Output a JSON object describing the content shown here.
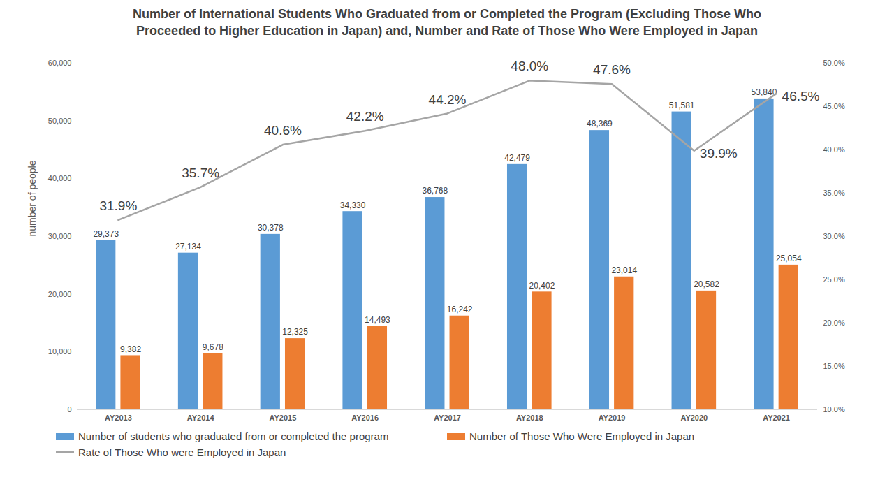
{
  "chart_data": {
    "type": "bar",
    "title": "Number of International Students Who Graduated from or Completed the Program (Excluding Those Who Proceeded to Higher Education in Japan) and, Number and Rate of Those Who Were Employed in Japan",
    "ylabel": "number of people",
    "categories": [
      "AY2013",
      "AY2014",
      "AY2015",
      "AY2016",
      "AY2017",
      "AY2018",
      "AY2019",
      "AY2020",
      "AY2021"
    ],
    "series": [
      {
        "name": "Number of students who graduated from or completed the program",
        "type": "bar",
        "color": "#5b9bd5",
        "values": [
          29373,
          27134,
          30378,
          34330,
          36768,
          42479,
          48369,
          51581,
          53840
        ],
        "value_labels": [
          "29,373",
          "27,134",
          "30,378",
          "34,330",
          "36,768",
          "42,479",
          "48,369",
          "51,581",
          "53,840"
        ]
      },
      {
        "name": "Number of Those Who Were Employed in Japan",
        "type": "bar",
        "color": "#ed7d31",
        "values": [
          9382,
          9678,
          12325,
          14493,
          16242,
          20402,
          23014,
          20582,
          25054
        ],
        "value_labels": [
          "9,382",
          "9,678",
          "12,325",
          "14,493",
          "16,242",
          "20,402",
          "23,014",
          "20,582",
          "25,054"
        ]
      },
      {
        "name": "Rate of Those Who were Employed in Japan",
        "type": "line",
        "axis": "y2",
        "color": "#a5a5a5",
        "values": [
          31.9,
          35.7,
          40.6,
          42.2,
          44.2,
          48.0,
          47.6,
          39.9,
          46.5
        ],
        "value_labels": [
          "31.9%",
          "35.7%",
          "40.6%",
          "42.2%",
          "44.2%",
          "48.0%",
          "47.6%",
          "39.9%",
          "46.5%"
        ]
      }
    ],
    "ylim": [
      0,
      60000
    ],
    "yticks": [
      0,
      {
        "value": 10000,
        "label": "10,000"
      },
      {
        "value": 20000,
        "label": "20,000"
      },
      {
        "value": 30000,
        "label": "30,000"
      },
      {
        "value": 40000,
        "label": "40,000"
      },
      {
        "value": 50000,
        "label": "50,000"
      },
      {
        "value": 60000,
        "label": "60,000"
      }
    ],
    "y2lim": [
      10,
      50
    ],
    "y2ticks": [
      {
        "value": 10,
        "label": "10.0%"
      },
      {
        "value": 15,
        "label": "15.0%"
      },
      {
        "value": 20,
        "label": "20.0%"
      },
      {
        "value": 25,
        "label": "25.0%"
      },
      {
        "value": 30,
        "label": "30.0%"
      },
      {
        "value": 35,
        "label": "35.0%"
      },
      {
        "value": 40,
        "label": "40.0%"
      },
      {
        "value": 45,
        "label": "45.0%"
      },
      {
        "value": 50,
        "label": "50.0%"
      }
    ],
    "data_labels": true,
    "grid": false,
    "legend": "bottom"
  }
}
